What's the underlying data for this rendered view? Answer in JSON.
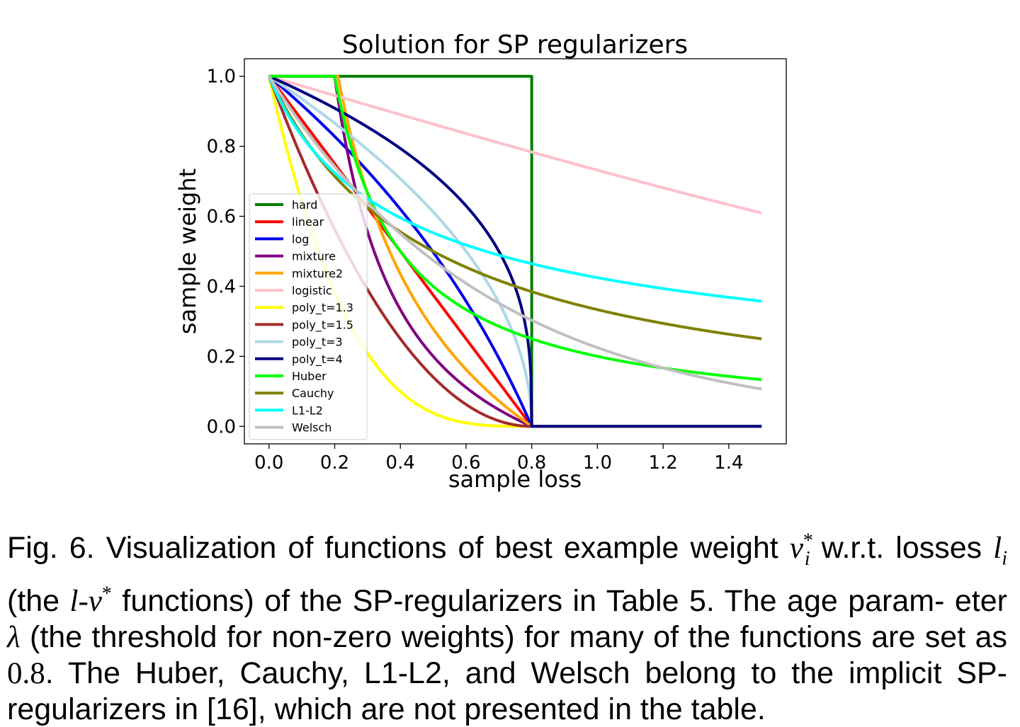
{
  "chart_data": {
    "type": "line",
    "title": "Solution for SP regularizers",
    "xlabel": "sample loss",
    "ylabel": "sample weight",
    "xlim": [
      -0.075,
      1.575
    ],
    "ylim": [
      -0.05,
      1.05
    ],
    "xticks": [
      0.0,
      0.2,
      0.4,
      0.6,
      0.8,
      1.0,
      1.2,
      1.4
    ],
    "xtick_labels": [
      "0.0",
      "0.2",
      "0.4",
      "0.6",
      "0.8",
      "1.0",
      "1.2",
      "1.4"
    ],
    "yticks": [
      0.0,
      0.2,
      0.4,
      0.6,
      0.8,
      1.0
    ],
    "ytick_labels": [
      "0.0",
      "0.2",
      "0.4",
      "0.6",
      "0.8",
      "1.0"
    ],
    "grid": false,
    "legend_position": "lower-left",
    "x_range": [
      0,
      1.5
    ],
    "lambda": 0.8,
    "series": [
      {
        "name": "hard",
        "color": "#007d00"
      },
      {
        "name": "linear",
        "color": "#ff0000"
      },
      {
        "name": "log",
        "color": "#0000ee"
      },
      {
        "name": "mixture",
        "color": "#800080"
      },
      {
        "name": "mixture2",
        "color": "#ffa500"
      },
      {
        "name": "logistic",
        "color": "#ffc0cb"
      },
      {
        "name": "poly_t=1.3",
        "color": "#ffff00"
      },
      {
        "name": "poly_t=1.5",
        "color": "#a52a2a"
      },
      {
        "name": "poly_t=3",
        "color": "#add8e6"
      },
      {
        "name": "poly_t=4",
        "color": "#000080"
      },
      {
        "name": "Huber",
        "color": "#00ff00"
      },
      {
        "name": "Cauchy",
        "color": "#808000"
      },
      {
        "name": "L1-L2",
        "color": "#00ffff"
      },
      {
        "name": "Welsch",
        "color": "#c0c0c0"
      }
    ]
  },
  "caption": {
    "l1_a": "Fig. 6. Visualization of functions of best example weight ",
    "l1_math": "v",
    "l1_sup": "*",
    "l1_sub": "i",
    "l1_b": " w.r.t. losses",
    "l2_math1": "l",
    "l2_sub": "i",
    "l2_a": " (the ",
    "l2_math2": "l",
    "l2_dash": "-",
    "l2_math3": "v",
    "l2_sup": "*",
    "l2_b": " functions) of the SP-regularizers in Table 5. The age param-",
    "l3_a": "eter ",
    "l3_math": "λ",
    "l3_b": " (the threshold for non-zero weights) for many of the functions are",
    "l4_a": "set as ",
    "l4_math": "0.8",
    "l4_b": ". The Huber, Cauchy, L1-L2, and Welsch belong to the implicit",
    "l5": "SP-regularizers in [16], which are not presented in the table."
  }
}
